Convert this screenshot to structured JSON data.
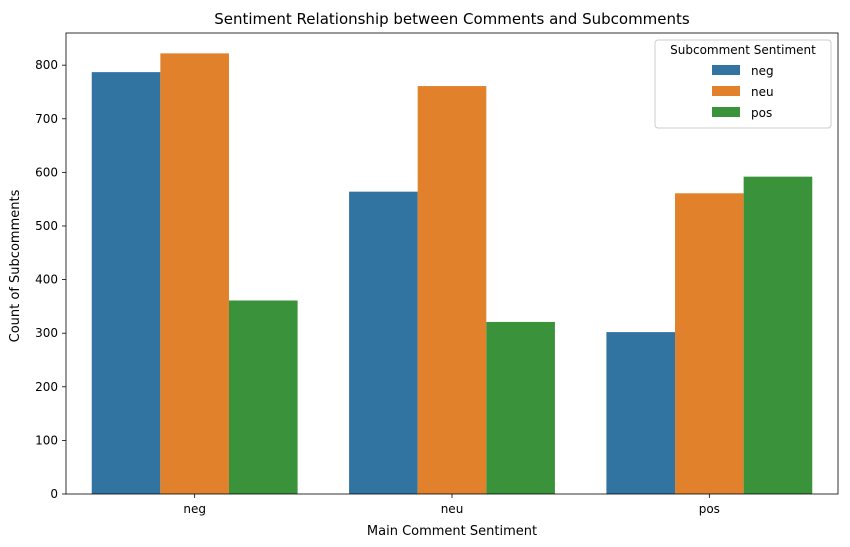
{
  "chart_data": {
    "type": "bar",
    "title": "Sentiment Relationship between Comments and Subcomments",
    "xlabel": "Main Comment Sentiment",
    "ylabel": "Count of Subcomments",
    "categories": [
      "neg",
      "neu",
      "pos"
    ],
    "ylim": [
      0,
      860
    ],
    "yticks": [
      0,
      100,
      200,
      300,
      400,
      500,
      600,
      700,
      800
    ],
    "grid": false,
    "legend": {
      "title": "Subcomment Sentiment",
      "placement": "top-right"
    },
    "series": [
      {
        "name": "neg",
        "color": "#3274a1",
        "values": [
          787,
          564,
          302
        ]
      },
      {
        "name": "neu",
        "color": "#e1812c",
        "values": [
          822,
          761,
          561
        ]
      },
      {
        "name": "pos",
        "color": "#3a923a",
        "values": [
          361,
          321,
          592
        ]
      }
    ]
  }
}
